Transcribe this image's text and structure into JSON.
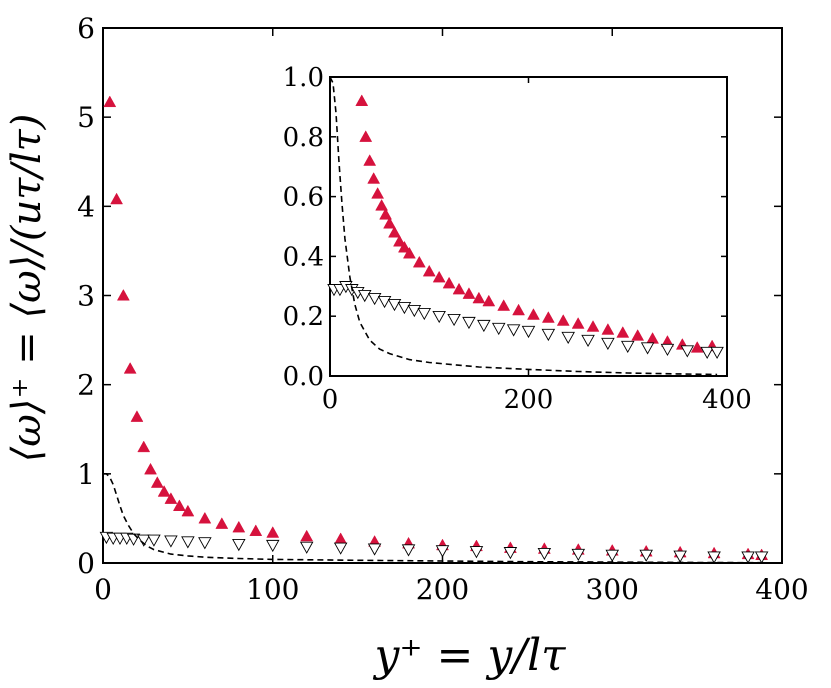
{
  "chart_data": [
    {
      "type": "scatter",
      "panel": "main",
      "xlabel": "y⁺ = y/lτ",
      "ylabel": "⟨ω⟩⁺ = ⟨ω⟩/(uτ/lτ)",
      "xlim": [
        0,
        400
      ],
      "ylim": [
        0,
        6
      ],
      "xticks": [
        "0",
        "100",
        "200",
        "300",
        "400"
      ],
      "yticks": [
        "0",
        "1",
        "2",
        "3",
        "4",
        "5",
        "6"
      ],
      "grid": false,
      "series": [
        {
          "marker": "filled-triangle-up",
          "color": "#d6123d",
          "x": [
            4,
            8,
            12,
            16,
            20,
            24,
            28,
            32,
            36,
            40,
            45,
            50,
            60,
            70,
            80,
            90,
            100,
            120,
            140,
            160,
            180,
            200,
            220,
            240,
            260,
            280,
            300,
            320,
            340,
            360,
            380,
            388
          ],
          "y": [
            5.17,
            4.08,
            3.0,
            2.18,
            1.64,
            1.3,
            1.05,
            0.9,
            0.8,
            0.72,
            0.64,
            0.58,
            0.5,
            0.44,
            0.4,
            0.36,
            0.34,
            0.3,
            0.27,
            0.24,
            0.22,
            0.2,
            0.19,
            0.17,
            0.16,
            0.15,
            0.14,
            0.13,
            0.12,
            0.11,
            0.1,
            0.09
          ]
        },
        {
          "marker": "open-triangle-down",
          "color": "#000000",
          "x": [
            2,
            6,
            10,
            14,
            18,
            24,
            30,
            40,
            50,
            60,
            80,
            100,
            120,
            140,
            160,
            180,
            200,
            220,
            240,
            260,
            280,
            300,
            320,
            340,
            360,
            380,
            388
          ],
          "y": [
            0.29,
            0.28,
            0.28,
            0.28,
            0.27,
            0.26,
            0.26,
            0.25,
            0.24,
            0.23,
            0.21,
            0.2,
            0.18,
            0.17,
            0.16,
            0.15,
            0.14,
            0.13,
            0.12,
            0.11,
            0.1,
            0.09,
            0.09,
            0.08,
            0.07,
            0.07,
            0.07
          ]
        },
        {
          "marker": "dashed-line",
          "color": "#000000",
          "x": [
            0,
            2,
            4,
            6,
            8,
            10,
            12,
            15,
            18,
            22,
            26,
            30,
            40,
            50,
            60,
            80,
            100,
            150,
            200,
            250,
            300,
            350,
            390
          ],
          "y": [
            1.0,
            1.0,
            0.96,
            0.88,
            0.76,
            0.64,
            0.53,
            0.42,
            0.33,
            0.25,
            0.19,
            0.15,
            0.1,
            0.08,
            0.065,
            0.05,
            0.04,
            0.03,
            0.022,
            0.015,
            0.01,
            0.006,
            0.003
          ]
        }
      ]
    },
    {
      "type": "scatter",
      "panel": "inset",
      "xlim": [
        0,
        400
      ],
      "ylim": [
        0,
        1.0
      ],
      "xticks": [
        "0",
        "200",
        "400"
      ],
      "yticks": [
        "0.0",
        "0.2",
        "0.4",
        "0.6",
        "0.8",
        "1.0"
      ],
      "grid": false,
      "series": [
        {
          "marker": "filled-triangle-up",
          "color": "#d6123d",
          "x": [
            32,
            36,
            40,
            44,
            48,
            52,
            56,
            60,
            65,
            70,
            75,
            80,
            90,
            100,
            110,
            120,
            130,
            140,
            150,
            160,
            175,
            190,
            205,
            220,
            235,
            250,
            265,
            280,
            295,
            310,
            325,
            340,
            355,
            370,
            385
          ],
          "y": [
            0.92,
            0.8,
            0.72,
            0.66,
            0.61,
            0.57,
            0.54,
            0.51,
            0.48,
            0.45,
            0.43,
            0.41,
            0.38,
            0.35,
            0.33,
            0.31,
            0.29,
            0.275,
            0.26,
            0.25,
            0.235,
            0.22,
            0.205,
            0.195,
            0.185,
            0.175,
            0.165,
            0.155,
            0.145,
            0.135,
            0.125,
            0.115,
            0.105,
            0.095,
            0.1
          ]
        },
        {
          "marker": "open-triangle-down",
          "color": "#000000",
          "x": [
            4,
            10,
            16,
            22,
            28,
            35,
            45,
            55,
            65,
            75,
            85,
            95,
            110,
            125,
            140,
            155,
            170,
            185,
            200,
            220,
            240,
            260,
            280,
            300,
            320,
            340,
            360,
            380,
            390
          ],
          "y": [
            0.29,
            0.29,
            0.3,
            0.29,
            0.28,
            0.27,
            0.26,
            0.25,
            0.24,
            0.23,
            0.22,
            0.21,
            0.2,
            0.19,
            0.18,
            0.17,
            0.16,
            0.155,
            0.15,
            0.14,
            0.13,
            0.12,
            0.11,
            0.1,
            0.095,
            0.09,
            0.085,
            0.08,
            0.08
          ]
        },
        {
          "marker": "dashed-line",
          "color": "#000000",
          "x": [
            0,
            3,
            6,
            9,
            12,
            15,
            20,
            25,
            30,
            40,
            50,
            60,
            80,
            100,
            150,
            200,
            250,
            300,
            350,
            390
          ],
          "y": [
            1.0,
            0.98,
            0.88,
            0.72,
            0.58,
            0.46,
            0.33,
            0.24,
            0.18,
            0.12,
            0.09,
            0.075,
            0.055,
            0.045,
            0.03,
            0.022,
            0.015,
            0.01,
            0.007,
            0.005
          ]
        }
      ]
    }
  ]
}
